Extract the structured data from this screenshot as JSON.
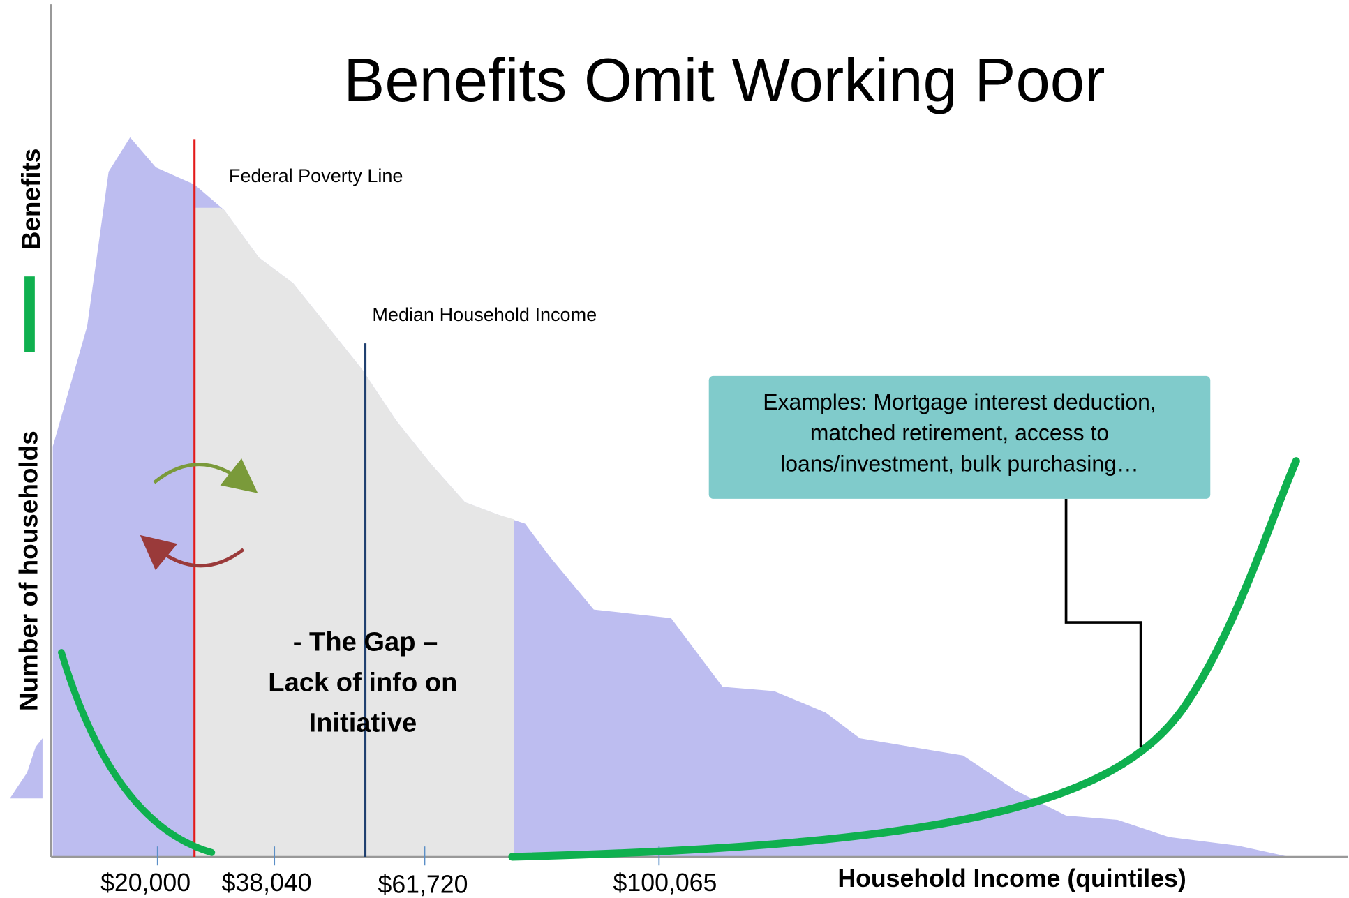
{
  "title": "Benefits Omit Working Poor",
  "annotations": {
    "poverty_line": "Federal Poverty Line",
    "median_income": "Median Household Income"
  },
  "examples_box": {
    "lines": [
      "Examples: Mortgage interest deduction,",
      "matched retirement, access to",
      "loans/investment, bulk purchasing…"
    ]
  },
  "gap": {
    "lines": [
      "- The Gap –",
      "Lack of info on",
      "Initiative"
    ]
  },
  "y_axis": {
    "label": "Number of households",
    "secondary_label": "Benefits"
  },
  "x_axis": {
    "label": "Household Income (quintiles)",
    "tick_labels": [
      "$20,000",
      "$38,040",
      "$61,720",
      "$100,065"
    ]
  }
}
